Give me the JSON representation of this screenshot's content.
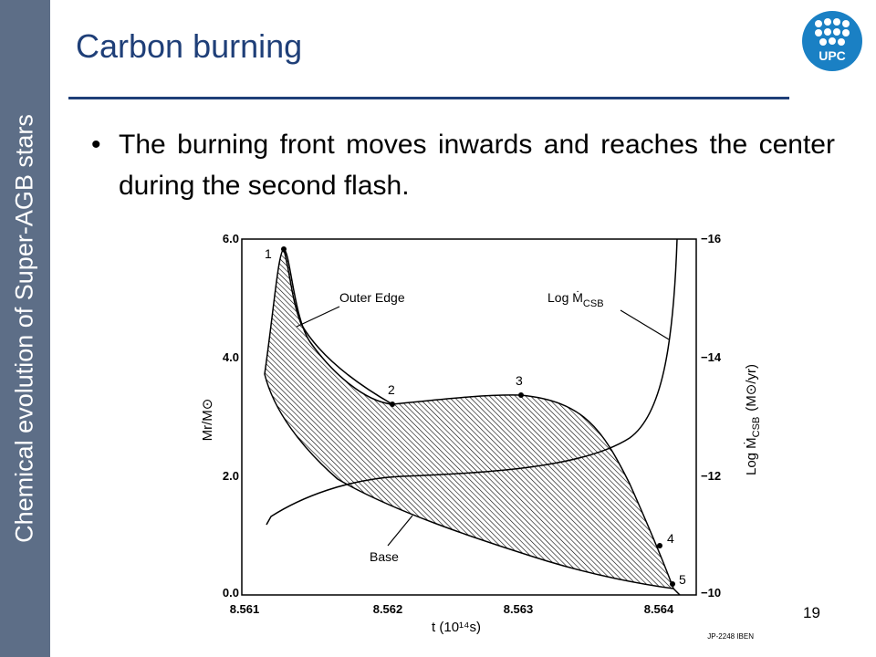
{
  "sidebar": "Chemical evolution of Super-AGB stars",
  "title": "Carbon burning",
  "bullets": [
    "The burning front moves inwards and reaches the center during the second flash."
  ],
  "page_number": "19",
  "logo": "UPC",
  "figure": {
    "y_ticks_left": [
      "6.0",
      "4.0",
      "2.0",
      "0.0"
    ],
    "y_ticks_right": [
      "−16",
      "−14",
      "−12",
      "−10"
    ],
    "x_ticks": [
      "8.561",
      "8.562",
      "8.563",
      "8.564"
    ],
    "y_label_left": "Mr/M⊙",
    "x_label": "t (10¹⁴s)",
    "y_label_right": "Log Ṁ",
    "y_label_right_sub": "CSB",
    "y_label_right_unit": "(M⊙/yr)",
    "annotations": {
      "outer_edge": "Outer Edge",
      "base": "Base",
      "log_mdot": "Log Ṁ",
      "log_mdot_sub": "CSB"
    },
    "points": [
      "1",
      "2",
      "3",
      "4",
      "5"
    ],
    "credit": "JP-2248 IBEN"
  }
}
